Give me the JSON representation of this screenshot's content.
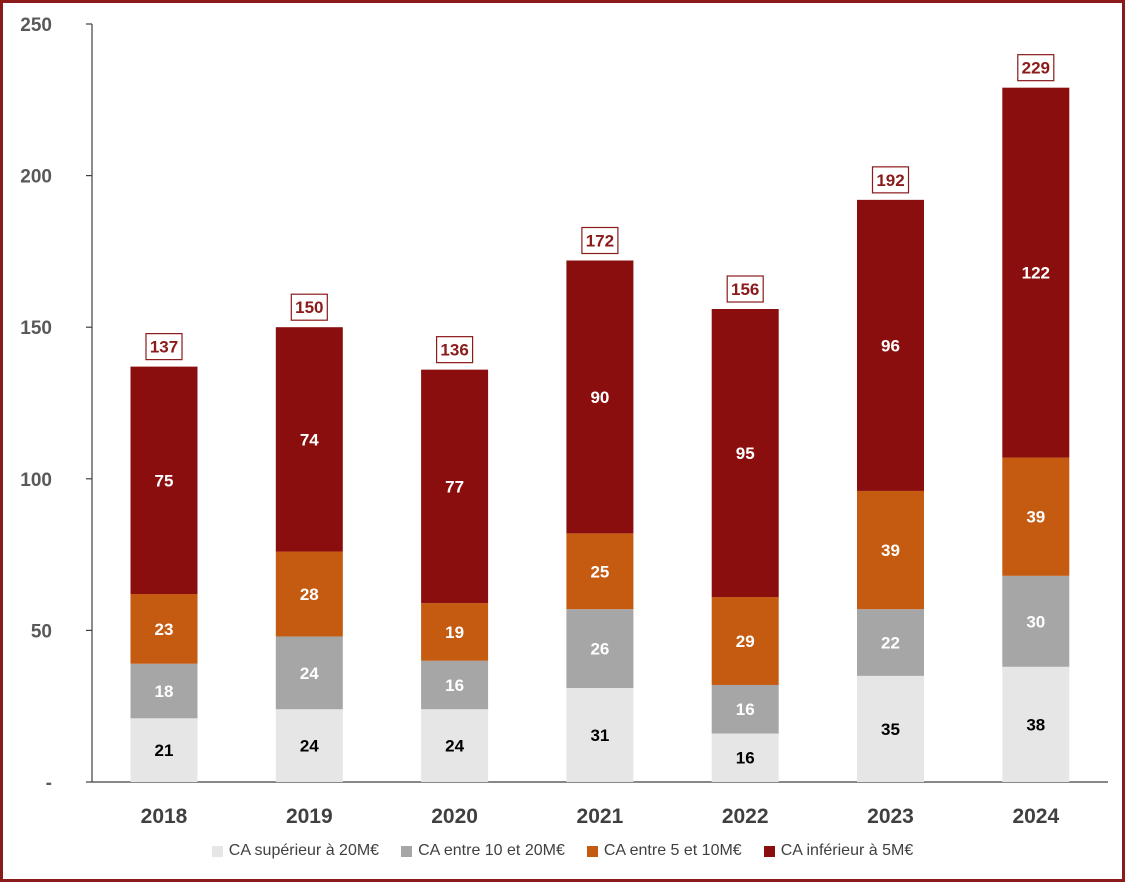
{
  "chart_data": {
    "type": "bar",
    "stacked": true,
    "categories": [
      "2018",
      "2019",
      "2020",
      "2021",
      "2022",
      "2023",
      "2024"
    ],
    "series": [
      {
        "name": "CA supérieur à 20M€",
        "color": "#e6e6e6",
        "label_color": "#000000",
        "values": [
          21,
          24,
          24,
          31,
          16,
          35,
          38
        ]
      },
      {
        "name": "CA entre 10 et 20M€",
        "color": "#a6a6a6",
        "label_color": "#ffffff",
        "values": [
          18,
          24,
          16,
          26,
          16,
          22,
          30
        ]
      },
      {
        "name": "CA entre 5 et 10M€",
        "color": "#c55a11",
        "label_color": "#ffffff",
        "values": [
          23,
          28,
          19,
          25,
          29,
          39,
          39
        ]
      },
      {
        "name": "CA inférieur à 5M€",
        "color": "#8b0e0e",
        "label_color": "#ffffff",
        "values": [
          75,
          74,
          77,
          90,
          95,
          96,
          122
        ]
      }
    ],
    "totals": [
      137,
      150,
      136,
      172,
      156,
      192,
      229
    ],
    "ylim": [
      0,
      250
    ],
    "yticks": [
      0,
      50,
      100,
      150,
      200,
      250
    ],
    "ytick_labels": [
      "-",
      "50",
      "100",
      "150",
      "200",
      "250"
    ],
    "grid": false,
    "legend_position": "bottom",
    "title": "",
    "xlabel": "",
    "ylabel": ""
  }
}
